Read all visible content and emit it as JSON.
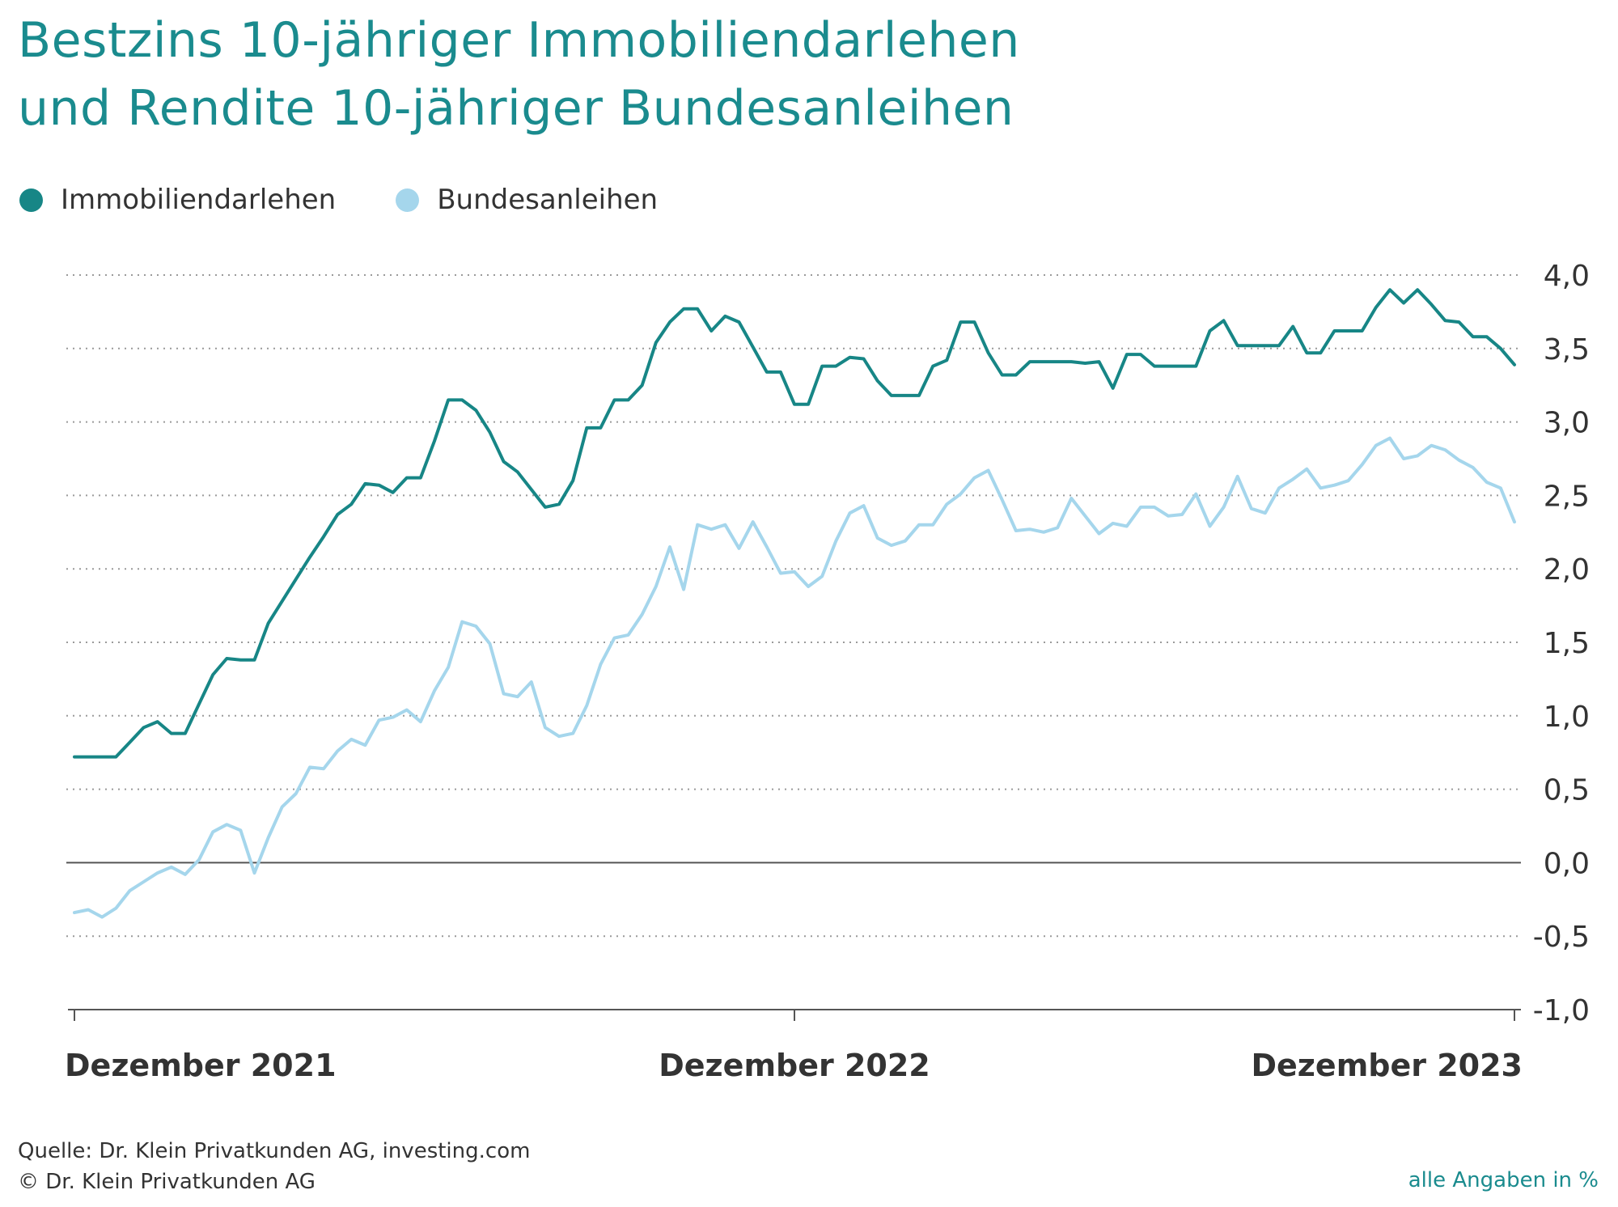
{
  "title_line1": "Bestzins 10-jähriger Immobiliendarlehen",
  "title_line2": "und Rendite 10-jähriger Bundesanleihen",
  "colors": {
    "title": "#1a8b8e",
    "immobilien": "#178686",
    "bundes": "#a5d6ec",
    "grid": "#9a9a9a",
    "zero": "#555555",
    "text": "#333333"
  },
  "footer": {
    "source": "Quelle: Dr. Klein Privatkunden AG, investing.com",
    "copyright": "© Dr. Klein Privatkunden AG",
    "unit_note": "alle Angaben in %"
  },
  "chart_data": {
    "type": "line",
    "title": "Bestzins 10-jähriger Immobiliendarlehen und Rendite 10-jähriger Bundesanleihen",
    "ylabel": "%",
    "ylim": [
      -1.0,
      4.0
    ],
    "yticks": [
      4.0,
      3.5,
      3.0,
      2.5,
      2.0,
      1.5,
      1.0,
      0.5,
      0.0,
      -0.5,
      -1.0
    ],
    "ytick_labels": [
      "4,0",
      "3,5",
      "3,0",
      "2,5",
      "2,0",
      "1,5",
      "1,0",
      "0,5",
      "0,0",
      "-0,5",
      "-1,0"
    ],
    "xlim": [
      0,
      104
    ],
    "xticks": [
      {
        "x": 0,
        "label": "Dezember 2021",
        "align": "start"
      },
      {
        "x": 52,
        "label": "Dezember 2022",
        "align": "middle"
      },
      {
        "x": 104,
        "label": "Dezember 2023",
        "align": "end"
      }
    ],
    "legend_position": "top-left",
    "grid": true,
    "series": [
      {
        "name": "Immobiliendarlehen",
        "color": "#178686",
        "x": [
          0,
          1,
          2,
          3,
          4,
          5,
          6,
          7,
          8,
          9,
          10,
          11,
          12,
          13,
          14,
          15,
          16,
          17,
          18,
          19,
          20,
          21,
          22,
          23,
          24,
          25,
          26,
          27,
          28,
          29,
          30,
          31,
          32,
          33,
          34,
          35,
          36,
          37,
          38,
          39,
          40,
          41,
          42,
          43,
          44,
          45,
          46,
          47,
          48,
          49,
          50,
          51,
          52,
          53,
          54,
          55,
          56,
          57,
          58,
          59,
          60,
          61,
          62,
          63,
          64,
          65,
          66,
          67,
          68,
          69,
          70,
          71,
          72,
          73,
          74,
          75,
          76,
          77,
          78,
          79,
          80,
          81,
          82,
          83,
          84,
          85,
          86,
          87,
          88,
          89,
          90,
          91,
          92,
          93,
          94,
          95,
          96,
          97,
          98,
          99,
          100,
          101,
          102,
          103,
          104
        ],
        "values": [
          0.72,
          0.72,
          0.72,
          0.72,
          0.82,
          0.92,
          0.96,
          0.88,
          0.88,
          1.08,
          1.28,
          1.39,
          1.38,
          1.38,
          1.63,
          1.78,
          1.93,
          2.08,
          2.22,
          2.37,
          2.44,
          2.58,
          2.57,
          2.52,
          2.62,
          2.62,
          2.87,
          3.15,
          3.15,
          3.08,
          2.93,
          2.73,
          2.66,
          2.54,
          2.42,
          2.44,
          2.6,
          2.96,
          2.96,
          3.15,
          3.15,
          3.25,
          3.54,
          3.68,
          3.77,
          3.77,
          3.62,
          3.72,
          3.68,
          3.51,
          3.34,
          3.34,
          3.12,
          3.12,
          3.38,
          3.38,
          3.44,
          3.43,
          3.28,
          3.18,
          3.18,
          3.18,
          3.38,
          3.42,
          3.68,
          3.68,
          3.47,
          3.32,
          3.32,
          3.41,
          3.41,
          3.41,
          3.41,
          3.4,
          3.41,
          3.23,
          3.46,
          3.46,
          3.38,
          3.38,
          3.38,
          3.38,
          3.62,
          3.69,
          3.52,
          3.52,
          3.52,
          3.52,
          3.65,
          3.47,
          3.47,
          3.62,
          3.62,
          3.62,
          3.78,
          3.9,
          3.81,
          3.9,
          3.8,
          3.69,
          3.68,
          3.58,
          3.58,
          3.5,
          3.39
        ]
      },
      {
        "name": "Bundesanleihen",
        "color": "#a5d6ec",
        "x": [
          0,
          1,
          2,
          3,
          4,
          5,
          6,
          7,
          8,
          9,
          10,
          11,
          12,
          13,
          14,
          15,
          16,
          17,
          18,
          19,
          20,
          21,
          22,
          23,
          24,
          25,
          26,
          27,
          28,
          29,
          30,
          31,
          32,
          33,
          34,
          35,
          36,
          37,
          38,
          39,
          40,
          41,
          42,
          43,
          44,
          45,
          46,
          47,
          48,
          49,
          50,
          51,
          52,
          53,
          54,
          55,
          56,
          57,
          58,
          59,
          60,
          61,
          62,
          63,
          64,
          65,
          66,
          67,
          68,
          69,
          70,
          71,
          72,
          73,
          74,
          75,
          76,
          77,
          78,
          79,
          80,
          81,
          82,
          83,
          84,
          85,
          86,
          87,
          88,
          89,
          90,
          91,
          92,
          93,
          94,
          95,
          96,
          97,
          98,
          99,
          100,
          101,
          102,
          103,
          104
        ],
        "values": [
          -0.34,
          -0.32,
          -0.37,
          -0.31,
          -0.19,
          -0.13,
          -0.07,
          -0.03,
          -0.08,
          0.02,
          0.21,
          0.26,
          0.22,
          -0.07,
          0.17,
          0.38,
          0.47,
          0.65,
          0.64,
          0.76,
          0.84,
          0.8,
          0.97,
          0.99,
          1.04,
          0.96,
          1.17,
          1.33,
          1.64,
          1.61,
          1.49,
          1.15,
          1.13,
          1.23,
          0.92,
          0.86,
          0.88,
          1.07,
          1.35,
          1.53,
          1.55,
          1.69,
          1.88,
          2.15,
          1.86,
          2.3,
          2.27,
          2.3,
          2.14,
          2.32,
          2.15,
          1.97,
          1.98,
          1.88,
          1.95,
          2.19,
          2.38,
          2.43,
          2.21,
          2.16,
          2.19,
          2.3,
          2.3,
          2.44,
          2.51,
          2.62,
          2.67,
          2.47,
          2.26,
          2.27,
          2.25,
          2.28,
          2.48,
          2.36,
          2.24,
          2.31,
          2.29,
          2.42,
          2.42,
          2.36,
          2.37,
          2.51,
          2.29,
          2.42,
          2.63,
          2.41,
          2.38,
          2.55,
          2.61,
          2.68,
          2.55,
          2.57,
          2.6,
          2.71,
          2.84,
          2.89,
          2.75,
          2.77,
          2.84,
          2.81,
          2.74,
          2.69,
          2.59,
          2.55,
          2.32
        ]
      }
    ]
  }
}
